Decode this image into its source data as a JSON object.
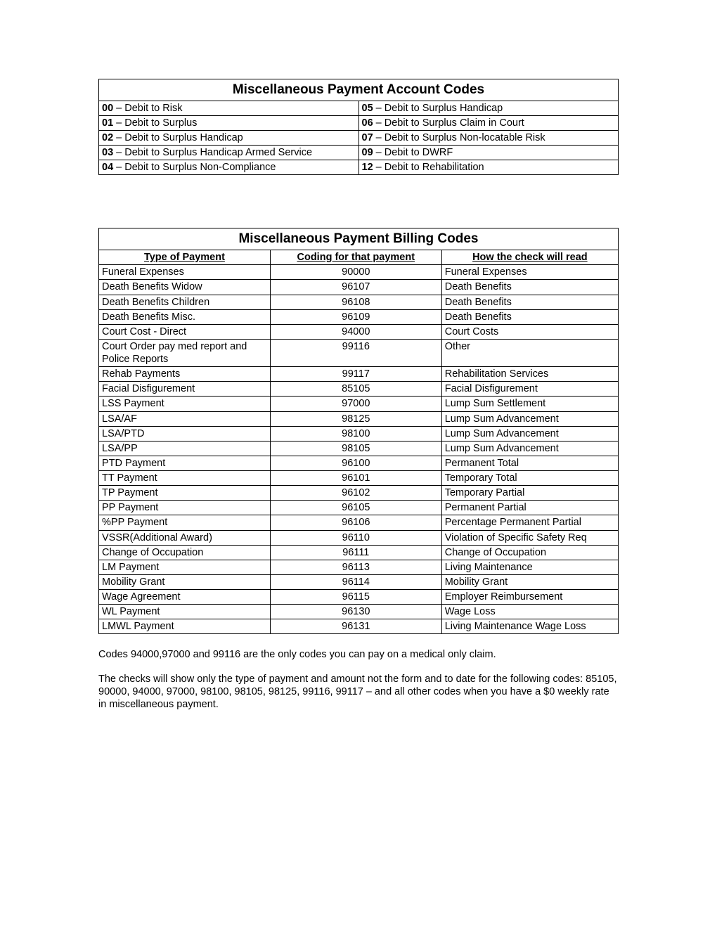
{
  "accountCodes": {
    "title": "Miscellaneous Payment Account Codes",
    "rows": [
      {
        "leftCode": "00",
        "leftText": " – Debit to Risk",
        "rightCode": "05",
        "rightText": " – Debit to Surplus Handicap"
      },
      {
        "leftCode": "01",
        "leftText": " – Debit to Surplus",
        "rightCode": "06",
        "rightText": " – Debit to Surplus Claim in Court"
      },
      {
        "leftCode": "02",
        "leftText": " – Debit to Surplus Handicap",
        "rightCode": "07",
        "rightText": " – Debit to Surplus Non-locatable Risk"
      },
      {
        "leftCode": "03",
        "leftText": " – Debit to Surplus Handicap Armed Service",
        "rightCode": "09",
        "rightText": " – Debit to DWRF"
      },
      {
        "leftCode": "04",
        "leftText": " – Debit to Surplus Non-Compliance",
        "rightCode": "12",
        "rightText": " – Debit to Rehabilitation"
      }
    ]
  },
  "billingCodes": {
    "title": "Miscellaneous Payment Billing Codes",
    "headers": {
      "col1": "Type of Payment",
      "col2": "Coding for that payment",
      "col3": "How the check will read"
    },
    "rows": [
      {
        "type": "Funeral Expenses",
        "code": "90000",
        "check": "Funeral Expenses"
      },
      {
        "type": "Death Benefits Widow",
        "code": "96107",
        "check": "Death Benefits"
      },
      {
        "type": "Death Benefits Children",
        "code": "96108",
        "check": "Death Benefits"
      },
      {
        "type": "Death Benefits Misc.",
        "code": "96109",
        "check": "Death Benefits"
      },
      {
        "type": "Court Cost - Direct",
        "code": "94000",
        "check": "Court Costs"
      },
      {
        "type": "Court Order pay med report and Police Reports",
        "code": "99116",
        "check": "Other"
      },
      {
        "type": "Rehab Payments",
        "code": "99117",
        "check": "Rehabilitation Services"
      },
      {
        "type": "Facial Disfigurement",
        "code": "85105",
        "check": "Facial Disfigurement"
      },
      {
        "type": "LSS Payment",
        "code": "97000",
        "check": "Lump Sum Settlement"
      },
      {
        "type": "LSA/AF",
        "code": "98125",
        "check": "Lump Sum Advancement"
      },
      {
        "type": "LSA/PTD",
        "code": "98100",
        "check": "Lump Sum Advancement"
      },
      {
        "type": "LSA/PP",
        "code": "98105",
        "check": "Lump Sum Advancement"
      },
      {
        "type": "PTD Payment",
        "code": "96100",
        "check": "Permanent Total"
      },
      {
        "type": "TT Payment",
        "code": "96101",
        "check": "Temporary Total"
      },
      {
        "type": "TP Payment",
        "code": "96102",
        "check": "Temporary Partial"
      },
      {
        "type": "PP Payment",
        "code": "96105",
        "check": "Permanent Partial"
      },
      {
        "type": "%PP Payment",
        "code": "96106",
        "check": "Percentage Permanent Partial"
      },
      {
        "type": "VSSR(Additional Award)",
        "code": "96110",
        "check": "Violation of Specific Safety Req"
      },
      {
        "type": "Change of Occupation",
        "code": "96111",
        "check": "Change of Occupation"
      },
      {
        "type": "LM Payment",
        "code": "96113",
        "check": "Living Maintenance"
      },
      {
        "type": "Mobility Grant",
        "code": "96114",
        "check": "Mobility Grant"
      },
      {
        "type": "Wage Agreement",
        "code": "96115",
        "check": "Employer Reimbursement"
      },
      {
        "type": "WL Payment",
        "code": "96130",
        "check": "Wage Loss"
      },
      {
        "type": "LMWL Payment",
        "code": "96131",
        "check": "Living Maintenance Wage Loss"
      }
    ]
  },
  "notes": {
    "p1": "Codes 94000,97000 and 99116 are the only codes you can pay on a medical only claim.",
    "p2": "The checks will show only the type of payment and amount not the form and to date for the following codes: 85105, 90000, 94000, 97000, 98100, 98105, 98125, 99116, 99117 – and all other codes when you have a $0 weekly rate in miscellaneous payment."
  }
}
